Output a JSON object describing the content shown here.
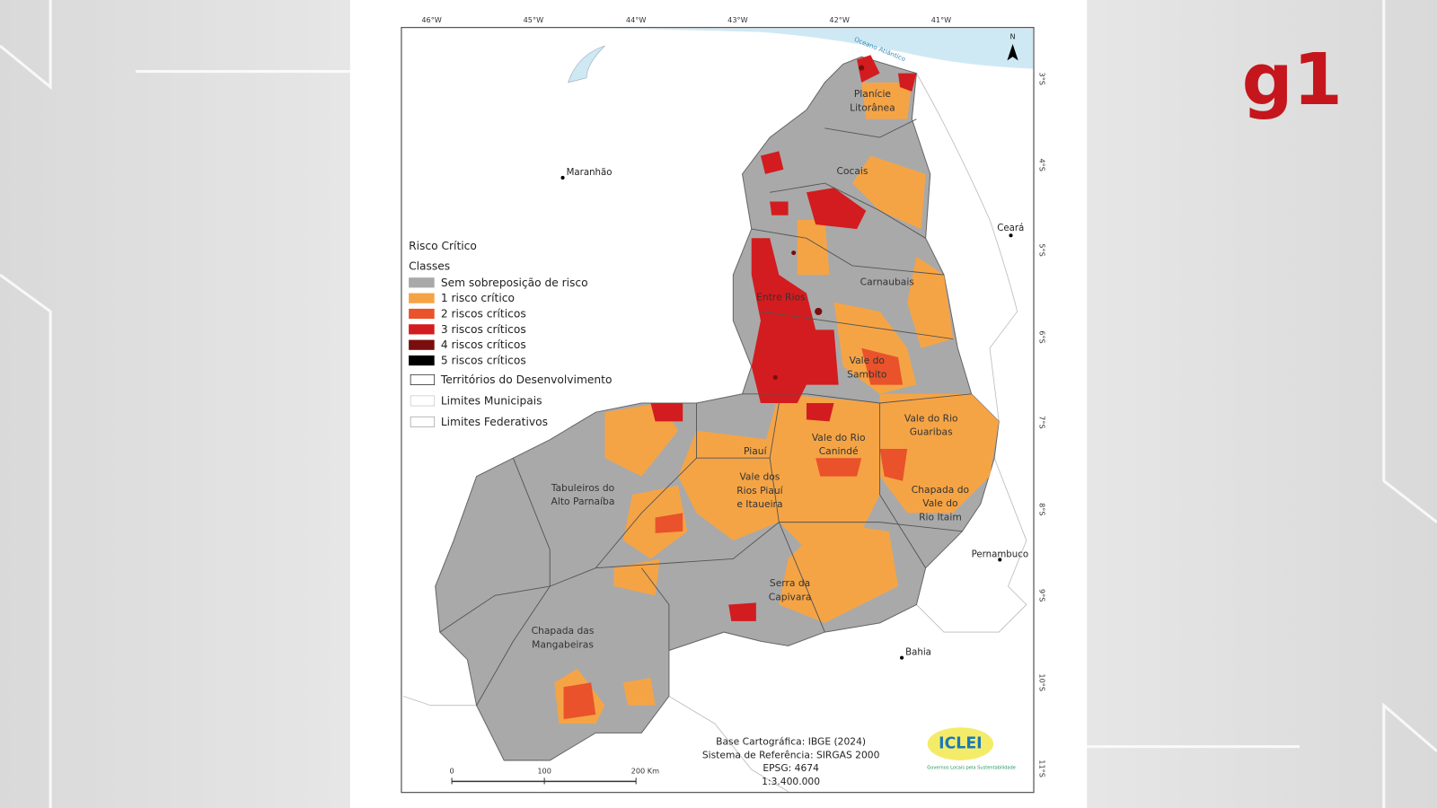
{
  "header": {
    "logo": "g1"
  },
  "map": {
    "longitude_labels": [
      "46°W",
      "45°W",
      "44°W",
      "43°W",
      "42°W",
      "41°W"
    ],
    "latitude_labels": [
      "3°S",
      "4°S",
      "5°S",
      "6°S",
      "7°S",
      "8°S",
      "9°S",
      "10°S",
      "11°S"
    ],
    "ocean": "Oceano Atlântico",
    "north": "N",
    "states": [
      "Maranhão",
      "Ceará",
      "Pernambuco",
      "Bahia"
    ],
    "territories": [
      {
        "lines": [
          "Planície",
          "Litorânea"
        ]
      },
      {
        "lines": [
          "Cocais"
        ]
      },
      {
        "lines": [
          "Carnaubais"
        ]
      },
      {
        "lines": [
          "Entre Rios"
        ]
      },
      {
        "lines": [
          "Vale do",
          "Sambito"
        ]
      },
      {
        "lines": [
          "Vale do Rio",
          "Guaribas"
        ]
      },
      {
        "lines": [
          "Vale do Rio",
          "Canindé"
        ]
      },
      {
        "lines": [
          "Piauí"
        ]
      },
      {
        "lines": [
          "Vale dos",
          "Rios Piauí",
          "e Itaueira"
        ]
      },
      {
        "lines": [
          "Chapada do",
          "Vale do",
          "Rio Itaim"
        ]
      },
      {
        "lines": [
          "Tabuleiros do",
          "Alto Parnaíba"
        ]
      },
      {
        "lines": [
          "Serra da",
          "Capivara"
        ]
      },
      {
        "lines": [
          "Chapada das",
          "Mangabeiras"
        ]
      }
    ],
    "legend": {
      "title": "Risco Crítico",
      "subtitle": "Classes",
      "classes": [
        {
          "label": "Sem sobreposição de risco",
          "color": "#a9a9a9"
        },
        {
          "label": "1 risco crítico",
          "color": "#f5a445"
        },
        {
          "label": "2 riscos críticos",
          "color": "#e9522b"
        },
        {
          "label": "3 riscos críticos",
          "color": "#d31c1f"
        },
        {
          "label": "4 riscos críticos",
          "color": "#7a0e0e"
        },
        {
          "label": "5 riscos críticos",
          "color": "#000000"
        }
      ],
      "lines": [
        "Territórios do Desenvolvimento",
        "Limites Municipais",
        "Limites Federativos"
      ]
    },
    "scale_bar": {
      "labels": [
        "0",
        "100",
        "200 Km"
      ]
    },
    "credits": [
      "Base Cartográfica: IBGE (2024)",
      "Sistema de Referência: SIRGAS 2000",
      "EPSG: 4674",
      "1:3.400.000"
    ],
    "logo": {
      "name": "ICLEI",
      "tagline": "Governos Locais pela Sustentabilidade"
    }
  }
}
